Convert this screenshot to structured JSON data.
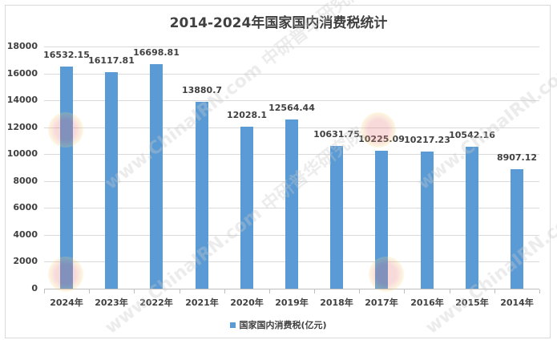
{
  "chart": {
    "title": "2014-2024年国家国内消费税统计",
    "legend_label": "国家国内消费税(亿元)",
    "bar_color": "#5b9bd5",
    "watermark_text": "www.ChinaIRN.com 中研普华研究院"
  },
  "chart_data": {
    "type": "bar",
    "title": "2014-2024年国家国内消费税统计",
    "xlabel": "",
    "ylabel": "",
    "categories": [
      "2024年",
      "2023年",
      "2022年",
      "2021年",
      "2020年",
      "2019年",
      "2018年",
      "2017年",
      "2016年",
      "2015年",
      "2014年"
    ],
    "series": [
      {
        "name": "国家国内消费税(亿元)",
        "values": [
          16532.15,
          16117.81,
          16698.81,
          13880.7,
          12028.1,
          12564.44,
          10631.75,
          10225.09,
          10217.23,
          10542.16,
          8907.12
        ],
        "labels": [
          "16532.15",
          "16117.81",
          "16698.81",
          "13880.7",
          "12028.1",
          "12564.44",
          "10631.75",
          "10225.09",
          "10217.23",
          "10542.16",
          "8907.12"
        ]
      }
    ],
    "ylim": [
      0,
      18000
    ],
    "yticks": [
      "0",
      "2000",
      "4000",
      "6000",
      "8000",
      "10000",
      "12000",
      "14000",
      "16000",
      "18000"
    ],
    "grid": true,
    "legend_position": "bottom"
  }
}
